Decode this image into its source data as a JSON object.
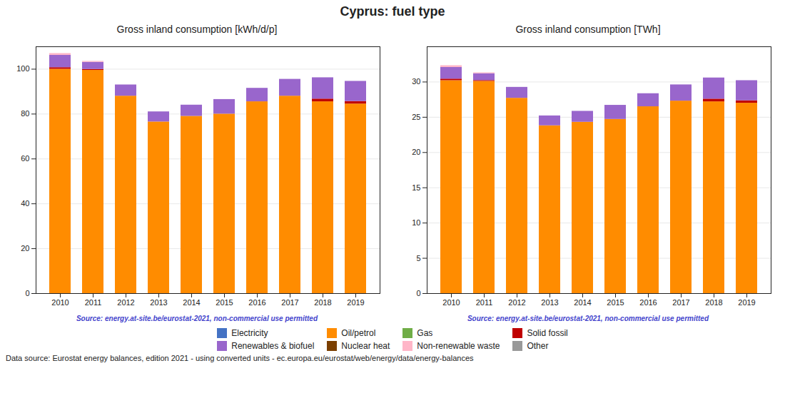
{
  "title": "Cyprus: fuel type",
  "annotations": [
    "Data source: Eurostat energy balances, edition 2021 - using converted units - ec.europa.eu/eurostat/web/energy/data/energy-balances"
  ],
  "legend": "bottom",
  "chart_data": [
    {
      "type": "bar",
      "stacked": true,
      "grid": true,
      "title": "Gross inland consumption [kWh/d/p]",
      "annotations": [
        "Source: energy.at-site.be/eurostat-2021, non-commercial use permitted"
      ],
      "categories": [
        "2010",
        "2011",
        "2012",
        "2013",
        "2014",
        "2015",
        "2016",
        "2017",
        "2018",
        "2019"
      ],
      "ylim": [
        0,
        110
      ],
      "yticks": [
        0,
        20,
        40,
        60,
        80,
        100
      ],
      "series": [
        {
          "name": "Electricity",
          "color": "#4472c4",
          "values": [
            0.0,
            0.0,
            0.0,
            0.0,
            0.0,
            0.0,
            0.0,
            0.0,
            0.0,
            0.0
          ]
        },
        {
          "name": "Oil/petrol",
          "color": "#ff8c00",
          "values": [
            100.0,
            99.5,
            88.0,
            76.5,
            79.0,
            80.0,
            85.5,
            88.0,
            85.5,
            84.5
          ]
        },
        {
          "name": "Gas",
          "color": "#70ad47",
          "values": [
            0.0,
            0.0,
            0.0,
            0.0,
            0.0,
            0.0,
            0.0,
            0.0,
            0.0,
            0.0
          ]
        },
        {
          "name": "Solid fossil",
          "color": "#c00000",
          "values": [
            0.7,
            0.4,
            0.0,
            0.0,
            0.0,
            0.0,
            0.0,
            0.0,
            1.2,
            1.1
          ]
        },
        {
          "name": "Renewables & biofuel",
          "color": "#9966cc",
          "values": [
            5.5,
            3.2,
            5.0,
            4.5,
            5.0,
            6.5,
            6.0,
            7.5,
            9.5,
            9.0
          ]
        },
        {
          "name": "Nuclear heat",
          "color": "#7b3f00",
          "values": [
            0.0,
            0.0,
            0.0,
            0.0,
            0.0,
            0.0,
            0.0,
            0.0,
            0.0,
            0.0
          ]
        },
        {
          "name": "Non-renewable waste",
          "color": "#ffb6c8",
          "values": [
            0.8,
            0.4,
            0.0,
            0.0,
            0.0,
            0.0,
            0.0,
            0.0,
            0.0,
            0.0
          ]
        },
        {
          "name": "Other",
          "color": "#999999",
          "values": [
            0.0,
            0.0,
            0.0,
            0.0,
            0.0,
            0.0,
            0.0,
            0.0,
            0.0,
            0.0
          ]
        }
      ]
    },
    {
      "type": "bar",
      "stacked": true,
      "grid": true,
      "title": "Gross inland consumption [TWh]",
      "annotations": [
        "Source: energy.at-site.be/eurostat-2021, non-commercial use permitted"
      ],
      "categories": [
        "2010",
        "2011",
        "2012",
        "2013",
        "2014",
        "2015",
        "2016",
        "2017",
        "2018",
        "2019"
      ],
      "ylim": [
        0,
        35
      ],
      "yticks": [
        0,
        5,
        10,
        15,
        20,
        25,
        30
      ],
      "series": [
        {
          "name": "Electricity",
          "color": "#4472c4",
          "values": [
            0.0,
            0.0,
            0.0,
            0.0,
            0.0,
            0.0,
            0.0,
            0.0,
            0.0,
            0.0
          ]
        },
        {
          "name": "Oil/petrol",
          "color": "#ff8c00",
          "values": [
            30.2,
            30.1,
            27.7,
            23.8,
            24.3,
            24.7,
            26.5,
            27.3,
            27.2,
            27.0
          ]
        },
        {
          "name": "Gas",
          "color": "#70ad47",
          "values": [
            0.0,
            0.0,
            0.0,
            0.0,
            0.0,
            0.0,
            0.0,
            0.0,
            0.0,
            0.0
          ]
        },
        {
          "name": "Solid fossil",
          "color": "#c00000",
          "values": [
            0.22,
            0.12,
            0.0,
            0.0,
            0.0,
            0.0,
            0.0,
            0.0,
            0.38,
            0.35
          ]
        },
        {
          "name": "Renewables & biofuel",
          "color": "#9966cc",
          "values": [
            1.65,
            0.97,
            1.55,
            1.4,
            1.55,
            2.0,
            1.85,
            2.3,
            3.0,
            2.85
          ]
        },
        {
          "name": "Nuclear heat",
          "color": "#7b3f00",
          "values": [
            0.0,
            0.0,
            0.0,
            0.0,
            0.0,
            0.0,
            0.0,
            0.0,
            0.0,
            0.0
          ]
        },
        {
          "name": "Non-renewable waste",
          "color": "#ffb6c8",
          "values": [
            0.25,
            0.12,
            0.0,
            0.0,
            0.0,
            0.0,
            0.0,
            0.0,
            0.0,
            0.0
          ]
        },
        {
          "name": "Other",
          "color": "#999999",
          "values": [
            0.0,
            0.0,
            0.0,
            0.0,
            0.0,
            0.0,
            0.0,
            0.0,
            0.0,
            0.0
          ]
        }
      ]
    }
  ]
}
